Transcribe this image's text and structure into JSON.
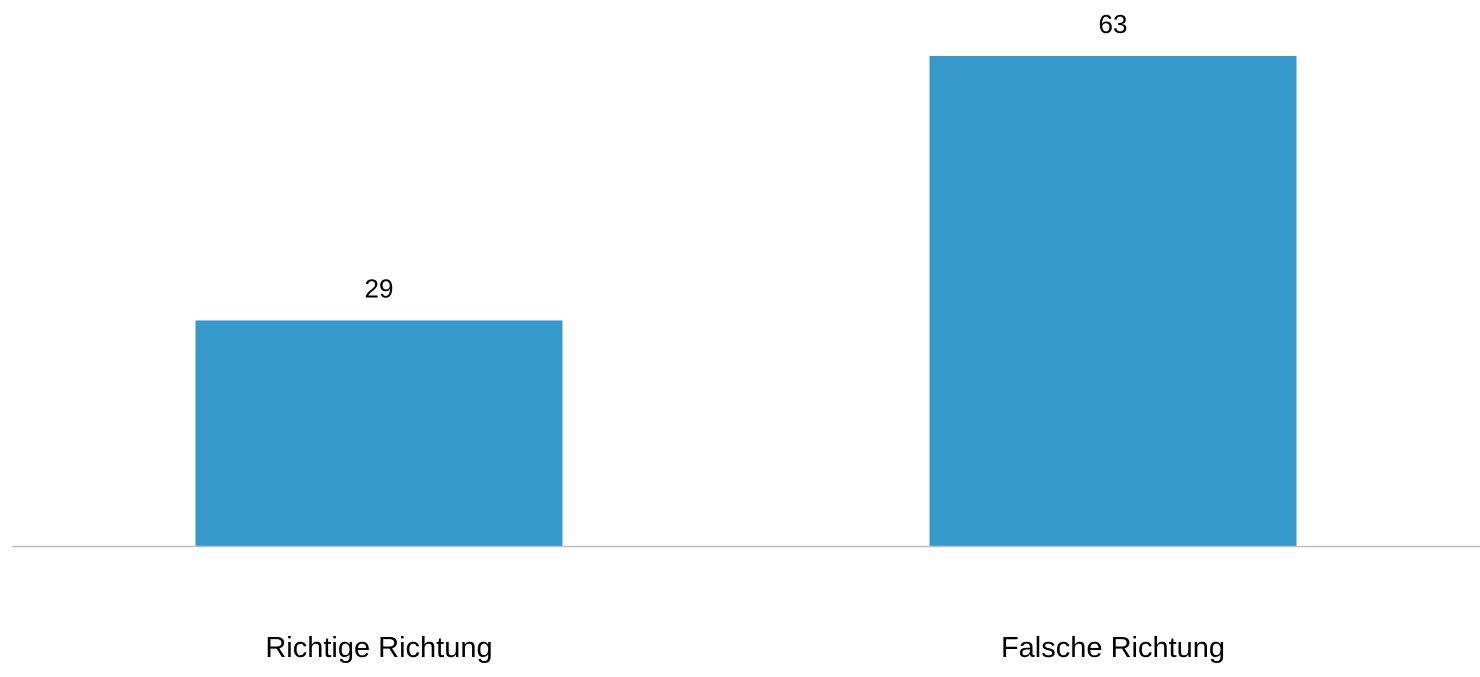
{
  "chart_data": {
    "type": "bar",
    "categories": [
      "Richtige Richtung",
      "Falsche Richtung"
    ],
    "values": [
      29,
      63
    ],
    "title": "",
    "xlabel": "",
    "ylabel": "",
    "ylim": [
      0,
      63
    ],
    "grid": false,
    "legend": "none",
    "bar_color": "#3599CC",
    "axis_color": "#BFBFBF",
    "text_color": "#000000"
  }
}
